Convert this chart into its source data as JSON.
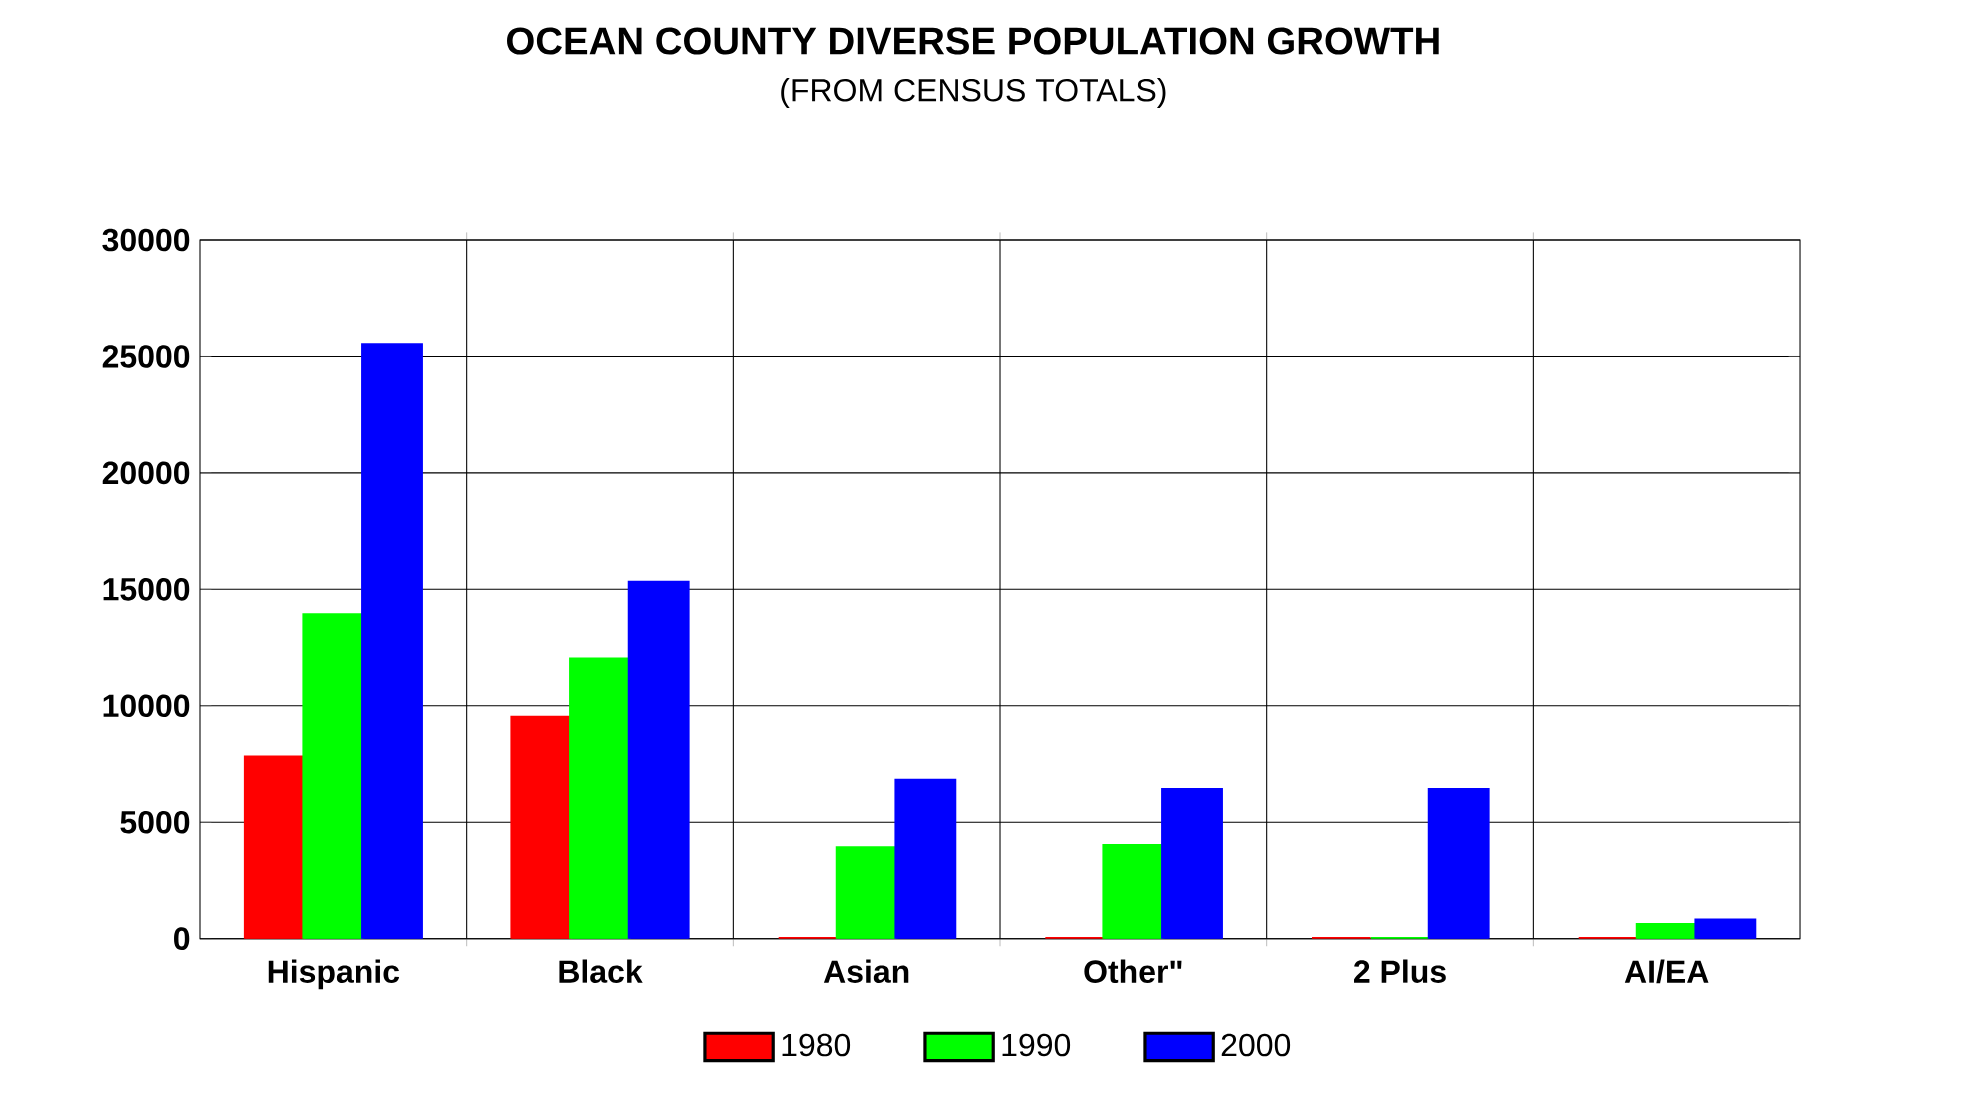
{
  "chart_data": {
    "type": "bar",
    "title": "OCEAN COUNTY DIVERSE POPULATION GROWTH",
    "subtitle": "(FROM CENSUS TOTALS)",
    "categories": [
      "Hispanic",
      "Black",
      "Asian",
      "Other\"",
      "2 Plus",
      "AI/EA"
    ],
    "series": [
      {
        "name": "1980",
        "color": "#ff0000",
        "values": [
          7800,
          9500,
          0,
          0,
          0,
          0
        ]
      },
      {
        "name": "1990",
        "color": "#00ff00",
        "values": [
          13900,
          12000,
          3900,
          4000,
          0,
          600
        ]
      },
      {
        "name": "2000",
        "color": "#0000ff",
        "values": [
          25500,
          15300,
          6800,
          6400,
          6400,
          800
        ]
      }
    ],
    "ylim": [
      0,
      30000
    ],
    "yticks": [
      0,
      5000,
      10000,
      15000,
      20000,
      25000,
      30000
    ],
    "grid": true,
    "legend": "bottom"
  }
}
